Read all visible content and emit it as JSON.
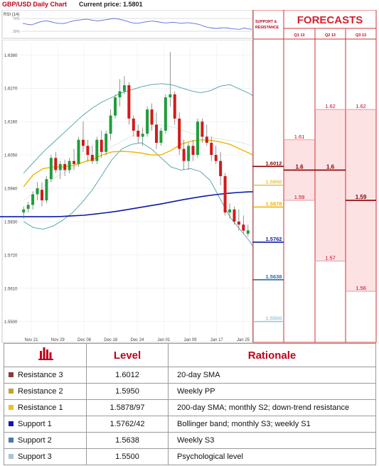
{
  "header": {
    "title": "GBP/USD Daily Chart",
    "price_label": "Current price:",
    "price_value": "1.5801"
  },
  "rsi": {
    "label": "RSI (14)",
    "upper": "70%",
    "lower": "30%",
    "values": [
      55,
      52,
      50,
      53,
      58,
      61,
      63,
      60,
      57,
      55,
      54,
      56,
      60,
      63,
      65,
      66,
      68,
      66,
      64,
      62,
      64,
      66,
      68,
      70,
      69,
      66,
      63,
      59,
      56,
      55,
      57,
      59,
      61,
      62,
      60,
      58,
      56,
      57,
      58,
      57,
      55,
      56,
      57,
      55,
      53,
      50,
      45,
      42,
      40,
      39,
      40,
      41,
      40,
      38,
      37,
      36,
      40,
      38,
      36
    ]
  },
  "chart_data": {
    "type": "candlestick",
    "title": "GBP/USD Daily Chart",
    "ylim": [
      1.545,
      1.643
    ],
    "y_ticks": [
      "1.6380",
      "1.6270",
      "1.6160",
      "1.6050",
      "1.5940",
      "1.5830",
      "1.5720",
      "1.5610",
      "1.5500"
    ],
    "x_ticks": [
      "Nov 21",
      "Nov 29",
      "Dec 08",
      "Dec 16",
      "Dec 24",
      "Jan 01",
      "Jan 09",
      "Jan 17",
      "Jan 25"
    ],
    "candles": [
      {
        "o": 1.586,
        "h": 1.588,
        "l": 1.584,
        "c": 1.587
      },
      {
        "o": 1.5872,
        "h": 1.5895,
        "l": 1.586,
        "c": 1.5885
      },
      {
        "o": 1.5885,
        "h": 1.593,
        "l": 1.587,
        "c": 1.592
      },
      {
        "o": 1.592,
        "h": 1.596,
        "l": 1.59,
        "c": 1.594
      },
      {
        "o": 1.5935,
        "h": 1.596,
        "l": 1.588,
        "c": 1.59
      },
      {
        "o": 1.59,
        "h": 1.598,
        "l": 1.589,
        "c": 1.597
      },
      {
        "o": 1.597,
        "h": 1.605,
        "l": 1.596,
        "c": 1.604
      },
      {
        "o": 1.604,
        "h": 1.606,
        "l": 1.599,
        "c": 1.6
      },
      {
        "o": 1.6,
        "h": 1.603,
        "l": 1.597,
        "c": 1.602
      },
      {
        "o": 1.602,
        "h": 1.6035,
        "l": 1.598,
        "c": 1.6
      },
      {
        "o": 1.6,
        "h": 1.604,
        "l": 1.599,
        "c": 1.603
      },
      {
        "o": 1.603,
        "h": 1.607,
        "l": 1.6,
        "c": 1.602
      },
      {
        "o": 1.602,
        "h": 1.611,
        "l": 1.601,
        "c": 1.61
      },
      {
        "o": 1.61,
        "h": 1.616,
        "l": 1.606,
        "c": 1.608
      },
      {
        "o": 1.608,
        "h": 1.61,
        "l": 1.603,
        "c": 1.605
      },
      {
        "o": 1.605,
        "h": 1.608,
        "l": 1.602,
        "c": 1.603
      },
      {
        "o": 1.603,
        "h": 1.611,
        "l": 1.602,
        "c": 1.61
      },
      {
        "o": 1.61,
        "h": 1.613,
        "l": 1.604,
        "c": 1.606
      },
      {
        "o": 1.606,
        "h": 1.613,
        "l": 1.605,
        "c": 1.612
      },
      {
        "o": 1.612,
        "h": 1.62,
        "l": 1.61,
        "c": 1.618
      },
      {
        "o": 1.618,
        "h": 1.625,
        "l": 1.617,
        "c": 1.624
      },
      {
        "o": 1.624,
        "h": 1.63,
        "l": 1.621,
        "c": 1.626
      },
      {
        "o": 1.626,
        "h": 1.631,
        "l": 1.625,
        "c": 1.628
      },
      {
        "o": 1.628,
        "h": 1.629,
        "l": 1.615,
        "c": 1.617
      },
      {
        "o": 1.617,
        "h": 1.618,
        "l": 1.611,
        "c": 1.613
      },
      {
        "o": 1.613,
        "h": 1.615,
        "l": 1.609,
        "c": 1.611
      },
      {
        "o": 1.611,
        "h": 1.614,
        "l": 1.608,
        "c": 1.612
      },
      {
        "o": 1.612,
        "h": 1.621,
        "l": 1.611,
        "c": 1.62
      },
      {
        "o": 1.62,
        "h": 1.622,
        "l": 1.613,
        "c": 1.615
      },
      {
        "o": 1.615,
        "h": 1.619,
        "l": 1.607,
        "c": 1.609
      },
      {
        "o": 1.609,
        "h": 1.614,
        "l": 1.608,
        "c": 1.613
      },
      {
        "o": 1.613,
        "h": 1.625,
        "l": 1.612,
        "c": 1.624
      },
      {
        "o": 1.624,
        "h": 1.639,
        "l": 1.621,
        "c": 1.625
      },
      {
        "o": 1.625,
        "h": 1.626,
        "l": 1.615,
        "c": 1.617
      },
      {
        "o": 1.617,
        "h": 1.619,
        "l": 1.605,
        "c": 1.607
      },
      {
        "o": 1.607,
        "h": 1.61,
        "l": 1.6,
        "c": 1.603
      },
      {
        "o": 1.603,
        "h": 1.609,
        "l": 1.6,
        "c": 1.608
      },
      {
        "o": 1.608,
        "h": 1.61,
        "l": 1.603,
        "c": 1.605
      },
      {
        "o": 1.605,
        "h": 1.617,
        "l": 1.604,
        "c": 1.616
      },
      {
        "o": 1.616,
        "h": 1.617,
        "l": 1.609,
        "c": 1.611
      },
      {
        "o": 1.611,
        "h": 1.615,
        "l": 1.608,
        "c": 1.609
      },
      {
        "o": 1.609,
        "h": 1.611,
        "l": 1.603,
        "c": 1.605
      },
      {
        "o": 1.605,
        "h": 1.608,
        "l": 1.602,
        "c": 1.603
      },
      {
        "o": 1.603,
        "h": 1.606,
        "l": 1.595,
        "c": 1.598
      },
      {
        "o": 1.598,
        "h": 1.599,
        "l": 1.585,
        "c": 1.586
      },
      {
        "o": 1.586,
        "h": 1.589,
        "l": 1.584,
        "c": 1.587
      },
      {
        "o": 1.587,
        "h": 1.588,
        "l": 1.582,
        "c": 1.583
      },
      {
        "o": 1.583,
        "h": 1.587,
        "l": 1.58,
        "c": 1.582
      },
      {
        "o": 1.582,
        "h": 1.585,
        "l": 1.579,
        "c": 1.58
      },
      {
        "o": 1.579,
        "h": 1.582,
        "l": 1.578,
        "c": 1.5801
      }
    ],
    "bb_upper": [
      1.599,
      1.6025,
      1.606,
      1.609,
      1.612,
      1.615,
      1.618,
      1.6205,
      1.6225,
      1.624,
      1.6255,
      1.6265,
      1.6275,
      1.6282,
      1.6285,
      1.6282,
      1.6272,
      1.6262,
      1.6255,
      1.6262,
      1.6277,
      1.6282,
      1.6267,
      1.6252,
      1.6232
    ],
    "bb_lower": [
      1.583,
      1.581,
      1.5805,
      1.5815,
      1.5835,
      1.586,
      1.5895,
      1.5935,
      1.5985,
      1.6035,
      1.607,
      1.6085,
      1.609,
      1.607,
      1.604,
      1.601,
      1.6,
      1.6005,
      1.5995,
      1.5965,
      1.5905,
      1.5845,
      1.5805,
      1.5765,
      1.5715
    ],
    "sma_20": [
      1.5945,
      1.5985,
      1.6005,
      1.601,
      1.601,
      1.6015,
      1.6025,
      1.6035,
      1.605,
      1.606,
      1.6062,
      1.606,
      1.6056,
      1.605,
      1.605,
      1.6065,
      1.6085,
      1.6095,
      1.61,
      1.6098,
      1.6093,
      1.6085,
      1.607,
      1.6055,
      1.604
    ],
    "sma_200": [
      1.5846,
      1.5846,
      1.5846,
      1.5846,
      1.5846,
      1.5846,
      1.5847,
      1.5849,
      1.5851,
      1.5855,
      1.5859,
      1.5864,
      1.587,
      1.5876,
      1.5882,
      1.5888,
      1.5895,
      1.5902,
      1.5908,
      1.5914,
      1.5919,
      1.5923,
      1.5926,
      1.5928,
      1.5929
    ],
    "sma_fast": [
      1.59,
      1.594,
      1.598,
      1.601,
      1.604,
      1.607,
      1.61,
      1.613,
      1.615,
      1.614,
      1.612,
      1.611,
      1.61,
      1.609,
      1.607
    ]
  },
  "levels": [
    {
      "value": "1.6012",
      "color": "#8b0000"
    },
    {
      "value": "1.5950",
      "color": "#e8c25c"
    },
    {
      "value": "1.5878",
      "color": "#f0b400"
    },
    {
      "value": "1.5762",
      "color": "#0a1aa8"
    },
    {
      "value": "1.5638",
      "color": "#2c6ea6"
    },
    {
      "value": "1.5500",
      "color": "#a0c8d8"
    }
  ],
  "sr_header": "SUPPORT & RESISTANCE",
  "forecasts": {
    "title": "FORECASTS",
    "columns": [
      {
        "label": "Q1 13",
        "values": [
          "1.61",
          "1.6",
          "1.59"
        ]
      },
      {
        "label": "Q2 13",
        "values": [
          "1.62",
          "1.6",
          "1.57"
        ]
      },
      {
        "label": "Q3 13",
        "values": [
          "1.62",
          "1.59",
          "1.56"
        ]
      }
    ]
  },
  "table": {
    "head_level": "Level",
    "head_rationale": "Rationale",
    "rows": [
      {
        "name": "Resistance 3",
        "color": "#8b3a3a",
        "level": "1.6012",
        "rationale": "20-day SMA"
      },
      {
        "name": "Resistance 2",
        "color": "#c8a032",
        "level": "1.5950",
        "rationale": "Weekly PP"
      },
      {
        "name": "Resistance 1",
        "color": "#f0c020",
        "level": "1.5878/97",
        "rationale": "200-day SMA; monthly S2; down-trend resistance"
      },
      {
        "name": "Support 1",
        "color": "#0a1ab0",
        "level": "1.5762/42",
        "rationale": "Bollinger band; monthly S3; weekly S1"
      },
      {
        "name": "Support 2",
        "color": "#4a78a8",
        "level": "1.5638",
        "rationale": "Weekly S3"
      },
      {
        "name": "Support 3",
        "color": "#a8c4d8",
        "level": "1.5500",
        "rationale": "Psychological level"
      }
    ]
  }
}
